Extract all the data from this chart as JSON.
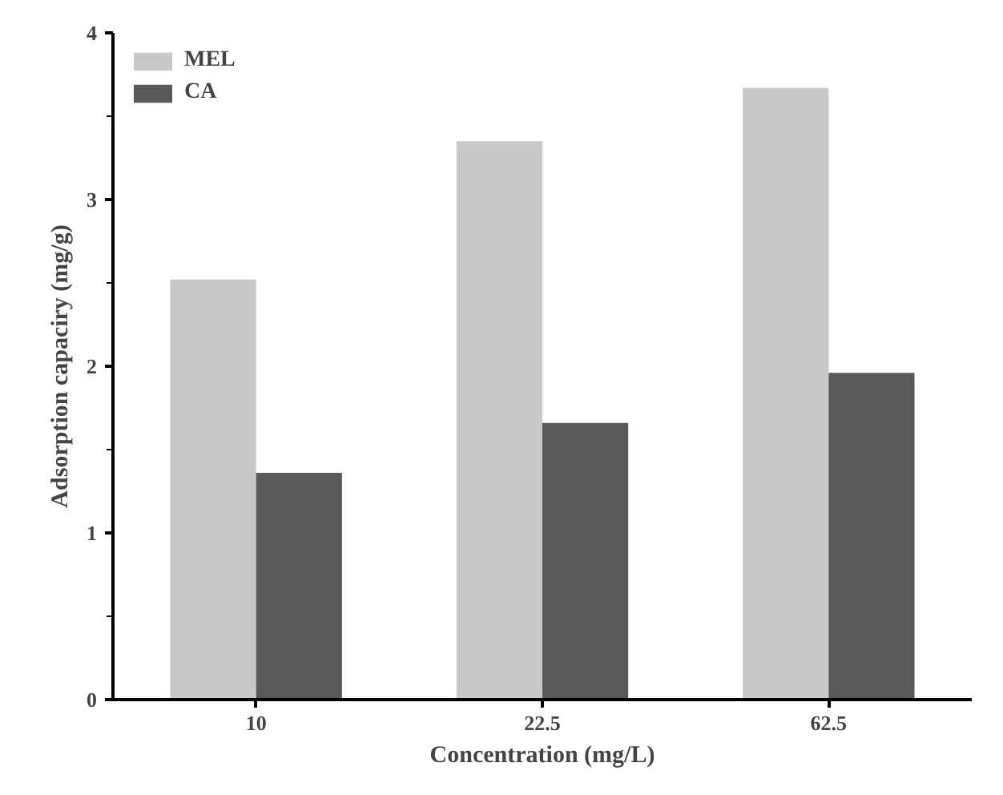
{
  "chart_data": {
    "type": "bar",
    "xlabel": "Concentration (mg/L)",
    "ylabel": "Adsorption capaciry (mg/g)",
    "categories": [
      "10",
      "22.5",
      "62.5"
    ],
    "series": [
      {
        "name": "MEL",
        "color": "#c8c8c8",
        "values": [
          2.52,
          3.35,
          3.67
        ]
      },
      {
        "name": "CA",
        "color": "#595959",
        "values": [
          1.36,
          1.66,
          1.96
        ]
      }
    ],
    "ylim": [
      0,
      4
    ],
    "yticks": [
      0,
      1,
      2,
      3,
      4
    ],
    "legend": "top left"
  }
}
